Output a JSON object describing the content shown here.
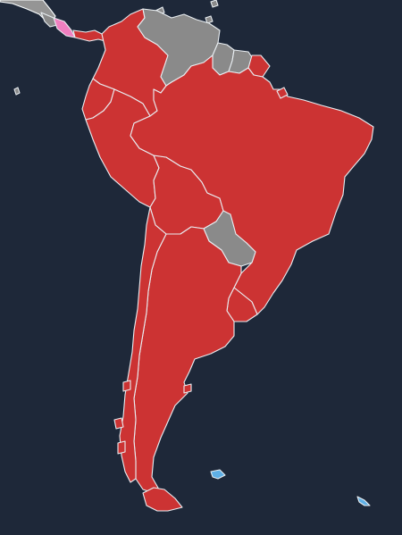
{
  "map": {
    "colors": {
      "background": "#1e2839",
      "region_red": "#cc3333",
      "region_gray": "#8a8a8a",
      "region_pink": "#f07fc0",
      "region_blue": "#5fb0e6",
      "border": "#e9eef2"
    },
    "regions": [
      {
        "name": "colombia",
        "fill": "region_red"
      },
      {
        "name": "venezuela",
        "fill": "region_gray"
      },
      {
        "name": "guyana",
        "fill": "region_gray"
      },
      {
        "name": "suriname",
        "fill": "region_gray"
      },
      {
        "name": "french-guiana",
        "fill": "region_red"
      },
      {
        "name": "ecuador",
        "fill": "region_red"
      },
      {
        "name": "peru",
        "fill": "region_red"
      },
      {
        "name": "brazil",
        "fill": "region_red"
      },
      {
        "name": "bolivia",
        "fill": "region_red"
      },
      {
        "name": "paraguay",
        "fill": "region_gray"
      },
      {
        "name": "chile",
        "fill": "region_red"
      },
      {
        "name": "argentina",
        "fill": "region_red"
      },
      {
        "name": "uruguay",
        "fill": "region_red"
      },
      {
        "name": "costa-rica",
        "fill": "region_pink"
      },
      {
        "name": "panama",
        "fill": "region_red"
      },
      {
        "name": "falkland-islands",
        "fill": "region_blue"
      },
      {
        "name": "south-georgia",
        "fill": "region_blue"
      }
    ]
  }
}
